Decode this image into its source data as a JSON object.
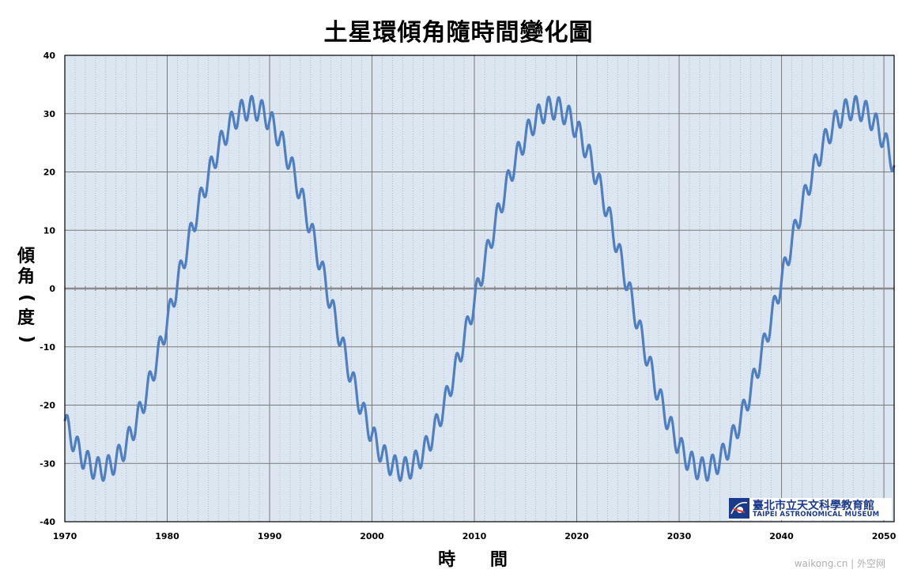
{
  "chart_data": {
    "type": "line",
    "title": "土星環傾角隨時間變化圖",
    "xlabel": "時 間",
    "ylabel": "傾角(度)",
    "xlim": [
      1970,
      2051
    ],
    "ylim": [
      -40,
      40
    ],
    "x_ticks": [
      1970,
      1980,
      1990,
      2000,
      2010,
      2020,
      2030,
      2040,
      2050
    ],
    "y_ticks": [
      40,
      30,
      20,
      10,
      0,
      -10,
      -20,
      -30,
      -40
    ],
    "grid": true,
    "legend": "none",
    "series": [
      {
        "color": "#4f7fc0",
        "model": {
          "amplitude": 31.0,
          "period_years": 29.46,
          "crossing_year": 1995.6,
          "wobble_amplitude": 2.0,
          "wobble_period_years": 1.0
        }
      }
    ]
  },
  "logo": {
    "name_zh": "臺北市立天文科學教育館",
    "name_en": "TAIPEI ASTRONOMICAL MUSEUM"
  },
  "watermark": "waikong.cn | 外空网",
  "colors": {
    "plot_bg": "#dce6f1",
    "line": "#4f7fc0",
    "grid": "#888888"
  }
}
